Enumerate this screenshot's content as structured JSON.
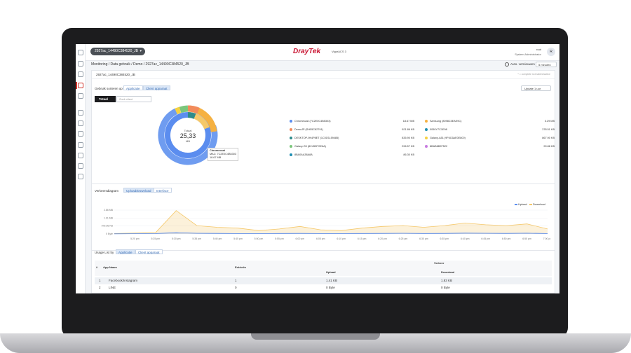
{
  "header": {
    "device_name": "2927ac_14490C384520_JB",
    "logo": "DrayTek",
    "logo_sub": "VigorACS 3",
    "user_name": "root",
    "user_role": "System Administrator",
    "avatar_letter": "R"
  },
  "breadcrumb": "Monitoring / Data gebruik / Demo / 2927ac_14490C384520_JB",
  "refresh": {
    "label": "Auto. vernieuwen",
    "interval": "5 minuten"
  },
  "panel": {
    "title": "2927ac_14490C384520_JB",
    "note": "* = complete is enabled/active",
    "sort_label": "Gebruik sorteren op",
    "sort_options": [
      "Applicatie",
      "Client apparaat"
    ],
    "update_label": "Update 1 uur",
    "total_tab": "Totaal",
    "search_placeholder": "Zoek client"
  },
  "donut": {
    "center_label": "Totaal",
    "center_value": "25,33",
    "center_unit": "MB",
    "tooltip": {
      "name": "Chromecast",
      "mac": "MAC: 7C2E0C4B5303",
      "value": "18.67 MB"
    }
  },
  "legend": {
    "left": [
      {
        "name": "Chromecast (7C2E0C4B5303)",
        "value": "18.67 MB",
        "color": "#5b8def"
      },
      {
        "name": "DemoJP (SH55C82791)",
        "value": "921.86 KB",
        "color": "#f28b5b"
      },
      {
        "name": "DESKTOP-9K4P8ET (1C01SL59485)",
        "value": "835.90 KB",
        "color": "#2e8b8b"
      },
      {
        "name": "Galaxy-S9 (8C453FOE6A)",
        "value": "296.57 KB",
        "color": "#7bc67b"
      },
      {
        "name": "8BA0AA38A8A",
        "value": "86.30 KB",
        "color": "#1f8fb3"
      }
    ],
    "right": [
      {
        "name": "Samsung (8098C3EAE9C)",
        "value": "3.29 MB",
        "color": "#f5b142"
      },
      {
        "name": "0050Y7C1E98",
        "value": "378.51 KB",
        "color": "#1f8fb3"
      },
      {
        "name": "Galaxy-A51 (9F6C6AE0E800)",
        "value": "867.90 KB",
        "color": "#f5d142"
      },
      {
        "name": "8BAB8B2F522",
        "value": "99.88 KB",
        "color": "#c77be0"
      }
    ]
  },
  "traffic": {
    "label": "Verkeersdiagram",
    "tabs": [
      "Upload/Download",
      "Interface"
    ],
    "legend_upload": "Upload",
    "legend_download": "Download",
    "y_ticks": [
      "2.86 MB",
      "1.91 MB",
      "976.56 KB",
      "0 Byte"
    ],
    "x_ticks": [
      "5:15 pm",
      "5:20 pm",
      "5:25 pm",
      "5:30 pm",
      "5:35 pm",
      "5:40 pm",
      "5:45 pm",
      "5:50 pm",
      "5:55 pm",
      "6:00 pm",
      "6:05 pm",
      "6:10 pm",
      "6:15 pm",
      "6:20 pm",
      "6:25 pm",
      "6:30 pm",
      "6:35 pm",
      "6:40 pm",
      "6:45 pm",
      "6:50 pm",
      "6:55 pm",
      "7:00 pm"
    ]
  },
  "usage": {
    "label": "Usage List by",
    "tabs": [
      "Applicatie",
      "Client apparaat"
    ],
    "headers": {
      "hash": "#",
      "app": "App Naam",
      "entries": "Entrieën",
      "traffic": "Verkeer",
      "upload": "Upload",
      "download": "Download"
    },
    "rows": [
      {
        "n": "1",
        "app": "Facebook/Instagram",
        "entries": "1",
        "upload": "1.41 KB",
        "download": "1.83 KB"
      },
      {
        "n": "2",
        "app": "LINE",
        "entries": "0",
        "upload": "0 Byte",
        "download": "0 Byte"
      }
    ]
  },
  "chart_data": {
    "type": "line",
    "x": [
      "5:15 pm",
      "5:20 pm",
      "5:25 pm",
      "5:30 pm",
      "5:35 pm",
      "5:40 pm",
      "5:45 pm",
      "5:50 pm",
      "5:55 pm",
      "6:00 pm",
      "6:05 pm",
      "6:10 pm",
      "6:15 pm",
      "6:20 pm",
      "6:25 pm",
      "6:30 pm",
      "6:35 pm",
      "6:40 pm",
      "6:45 pm",
      "6:50 pm",
      "6:55 pm",
      "7:00 pm"
    ],
    "series": [
      {
        "name": "Download",
        "color": "#f5c86a",
        "values": [
          0.05,
          0.1,
          0.15,
          2.8,
          1.0,
          0.8,
          0.7,
          0.4,
          0.6,
          0.9,
          0.5,
          0.4,
          0.7,
          0.9,
          1.0,
          0.8,
          1.0,
          1.3,
          1.1,
          1.0,
          1.2,
          0.6
        ]
      },
      {
        "name": "Upload",
        "color": "#5b8def",
        "values": [
          0.02,
          0.03,
          0.05,
          0.15,
          0.08,
          0.07,
          0.05,
          0.05,
          0.06,
          0.07,
          0.05,
          0.05,
          0.06,
          0.07,
          0.08,
          0.06,
          0.07,
          0.1,
          0.08,
          0.07,
          0.09,
          0.05
        ]
      }
    ],
    "ylabel": "",
    "xlabel": "",
    "ylim": [
      0,
      2.86
    ],
    "y_unit": "MB"
  }
}
